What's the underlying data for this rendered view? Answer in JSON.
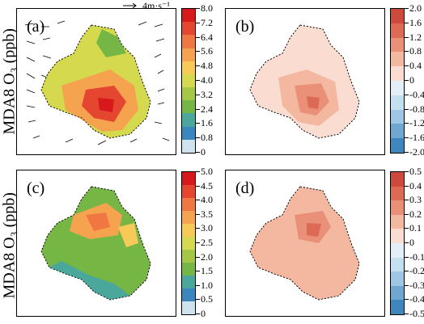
{
  "figure": {
    "ylabel_top": "MDA8 O₃ (ppb)",
    "ylabel_bottom": "MDA8 O₃ (ppb)",
    "wind_reference": "4m·s⁻¹"
  },
  "panels": [
    {
      "id": "a",
      "label": "(a)",
      "colorbar": {
        "ticks": [
          "8.0",
          "7.2",
          "6.4",
          "5.6",
          "4.8",
          "4.0",
          "3.2",
          "2.4",
          "1.6",
          "0.8",
          "0"
        ],
        "colors": [
          "#d7191c",
          "#e5462f",
          "#f07642",
          "#f6a34f",
          "#f7c957",
          "#d5d94e",
          "#a4c843",
          "#76b644",
          "#4aa79c",
          "#3c86c0",
          "#cfe3ef"
        ]
      }
    },
    {
      "id": "b",
      "label": "(b)",
      "colorbar": {
        "ticks": [
          "2.0",
          "1.6",
          "1.2",
          "0.8",
          "0.4",
          "0",
          "-0.4",
          "-0.8",
          "-1.2",
          "-1.6",
          "-2.0"
        ],
        "colors": [
          "#cb4a3c",
          "#dd6a55",
          "#ea9078",
          "#f4b8a1",
          "#fadcd0",
          "#e3eef6",
          "#c6dff0",
          "#9fc6e3",
          "#6ea8d2",
          "#3f86bd"
        ]
      }
    },
    {
      "id": "c",
      "label": "(c)",
      "colorbar": {
        "ticks": [
          "5.0",
          "4.5",
          "4.0",
          "3.5",
          "3.0",
          "2.5",
          "2.0",
          "1.5",
          "1.0",
          "0.5",
          "0"
        ],
        "colors": [
          "#d7191c",
          "#e5462f",
          "#f07642",
          "#f6a34f",
          "#f7c957",
          "#d5d94e",
          "#a4c843",
          "#76b644",
          "#4aa79c",
          "#3c86c0",
          "#cfe3ef"
        ]
      }
    },
    {
      "id": "d",
      "label": "(d)",
      "colorbar": {
        "ticks": [
          "0.5",
          "0.4",
          "0.3",
          "0.2",
          "0.1",
          "0",
          "-0.1",
          "-0.2",
          "-0.3",
          "-0.4",
          "-0.5"
        ],
        "colors": [
          "#cb4a3c",
          "#dd6a55",
          "#ea9078",
          "#f4b8a1",
          "#fadcd0",
          "#e3eef6",
          "#c6dff0",
          "#9fc6e3",
          "#6ea8d2",
          "#3f86bd"
        ]
      }
    }
  ]
}
